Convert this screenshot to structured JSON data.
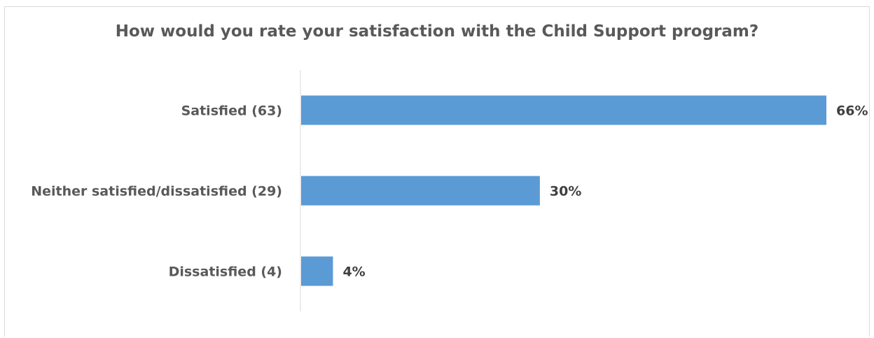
{
  "chart_data": {
    "type": "bar",
    "orientation": "horizontal",
    "title": "How would you rate your satisfaction with the Child Support program?",
    "categories": [
      "Satisfied (63)",
      "Neither satisfied/dissatisfied (29)",
      "Dissatisfied (4)"
    ],
    "values": [
      66,
      30,
      4
    ],
    "value_labels": [
      "66%",
      "30%",
      "4%"
    ],
    "xlim": [
      0,
      66
    ],
    "grid": false,
    "legend": "none",
    "bar_color": "#5b9bd5"
  }
}
